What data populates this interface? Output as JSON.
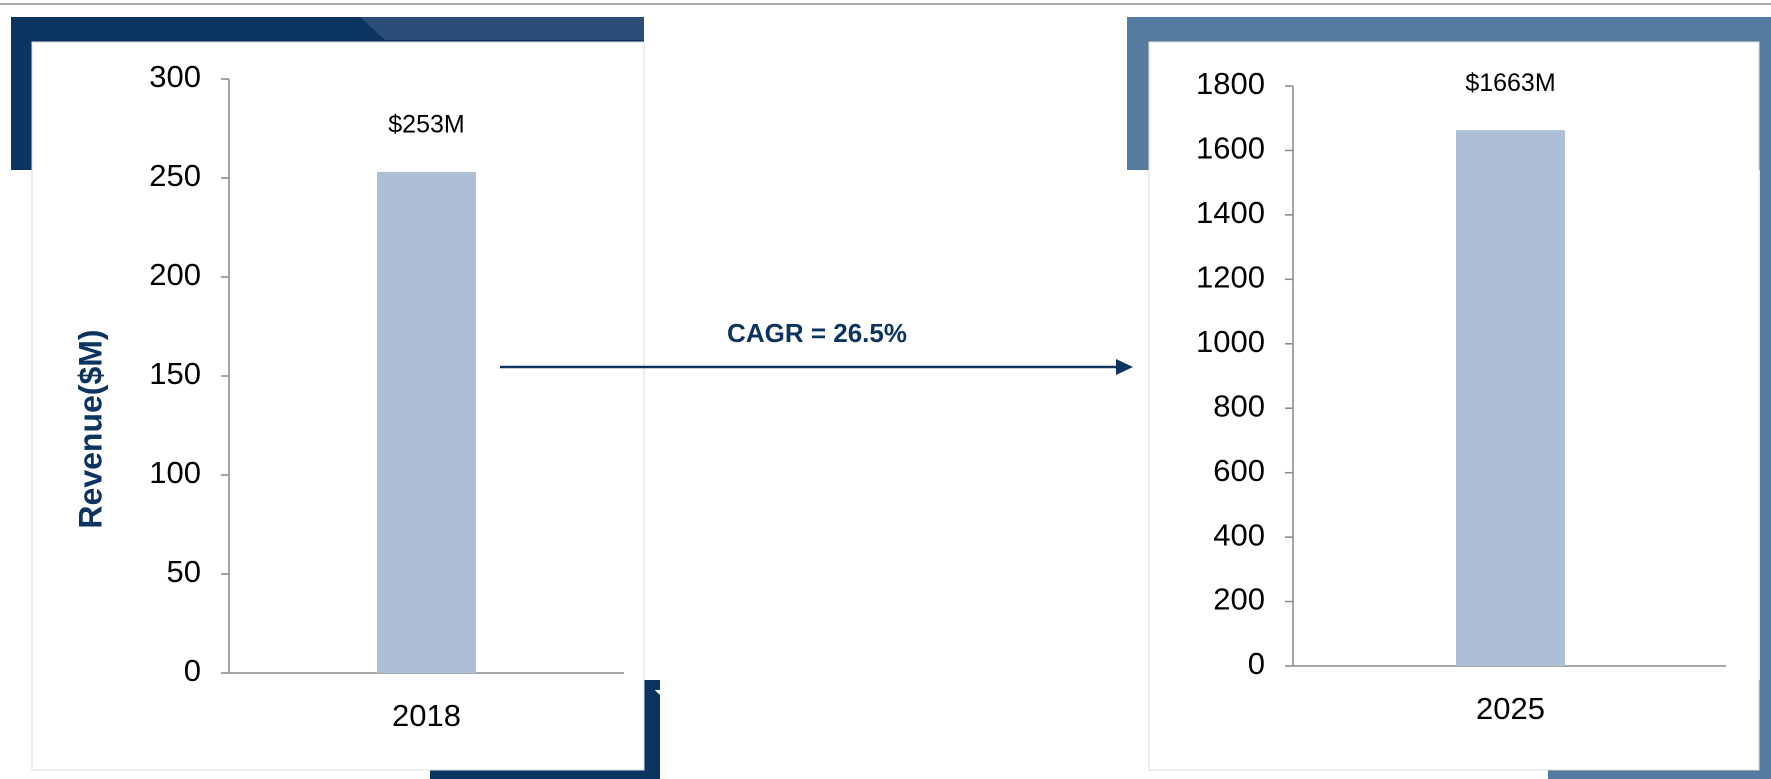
{
  "annotation": "CAGR = 26.5%",
  "chart_data": [
    {
      "type": "bar",
      "categories": [
        "2018"
      ],
      "values": [
        253
      ],
      "value_labels": [
        "$253M"
      ],
      "color": "#adbfd4",
      "y_label": "Revenue($M)",
      "ylim": [
        0,
        300
      ],
      "yticks": [
        0,
        50,
        100,
        150,
        200,
        250,
        300
      ]
    },
    {
      "type": "bar",
      "categories": [
        "2025"
      ],
      "values": [
        1663
      ],
      "value_labels": [
        "$1663M"
      ],
      "color": "#adbfd4",
      "ylim": [
        0,
        1800
      ],
      "yticks": [
        0,
        200,
        400,
        600,
        800,
        1000,
        1200,
        1400,
        1600,
        1800
      ]
    }
  ]
}
